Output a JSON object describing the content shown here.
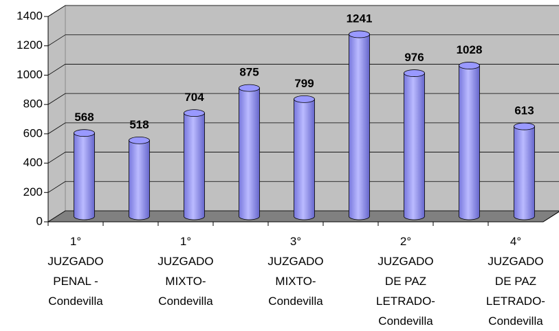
{
  "chart_data": {
    "type": "bar",
    "categories": [
      "1° JUZGADO PENAL - Condevilla",
      null,
      "1° JUZGADO MIXTO-Condevilla",
      null,
      "3° JUZGADO MIXTO-Condevilla",
      null,
      "2° JUZGADO DE PAZ LETRADO-Condevilla",
      null,
      "4° JUZGADO DE PAZ LETRADO-Condevilla"
    ],
    "values": [
      568,
      518,
      704,
      875,
      799,
      1241,
      976,
      1028,
      613
    ],
    "color": "#9999ff",
    "ylim": [
      0,
      1400
    ],
    "yticks": [
      0,
      200,
      400,
      600,
      800,
      1000,
      1200,
      1400
    ],
    "grid": true
  }
}
